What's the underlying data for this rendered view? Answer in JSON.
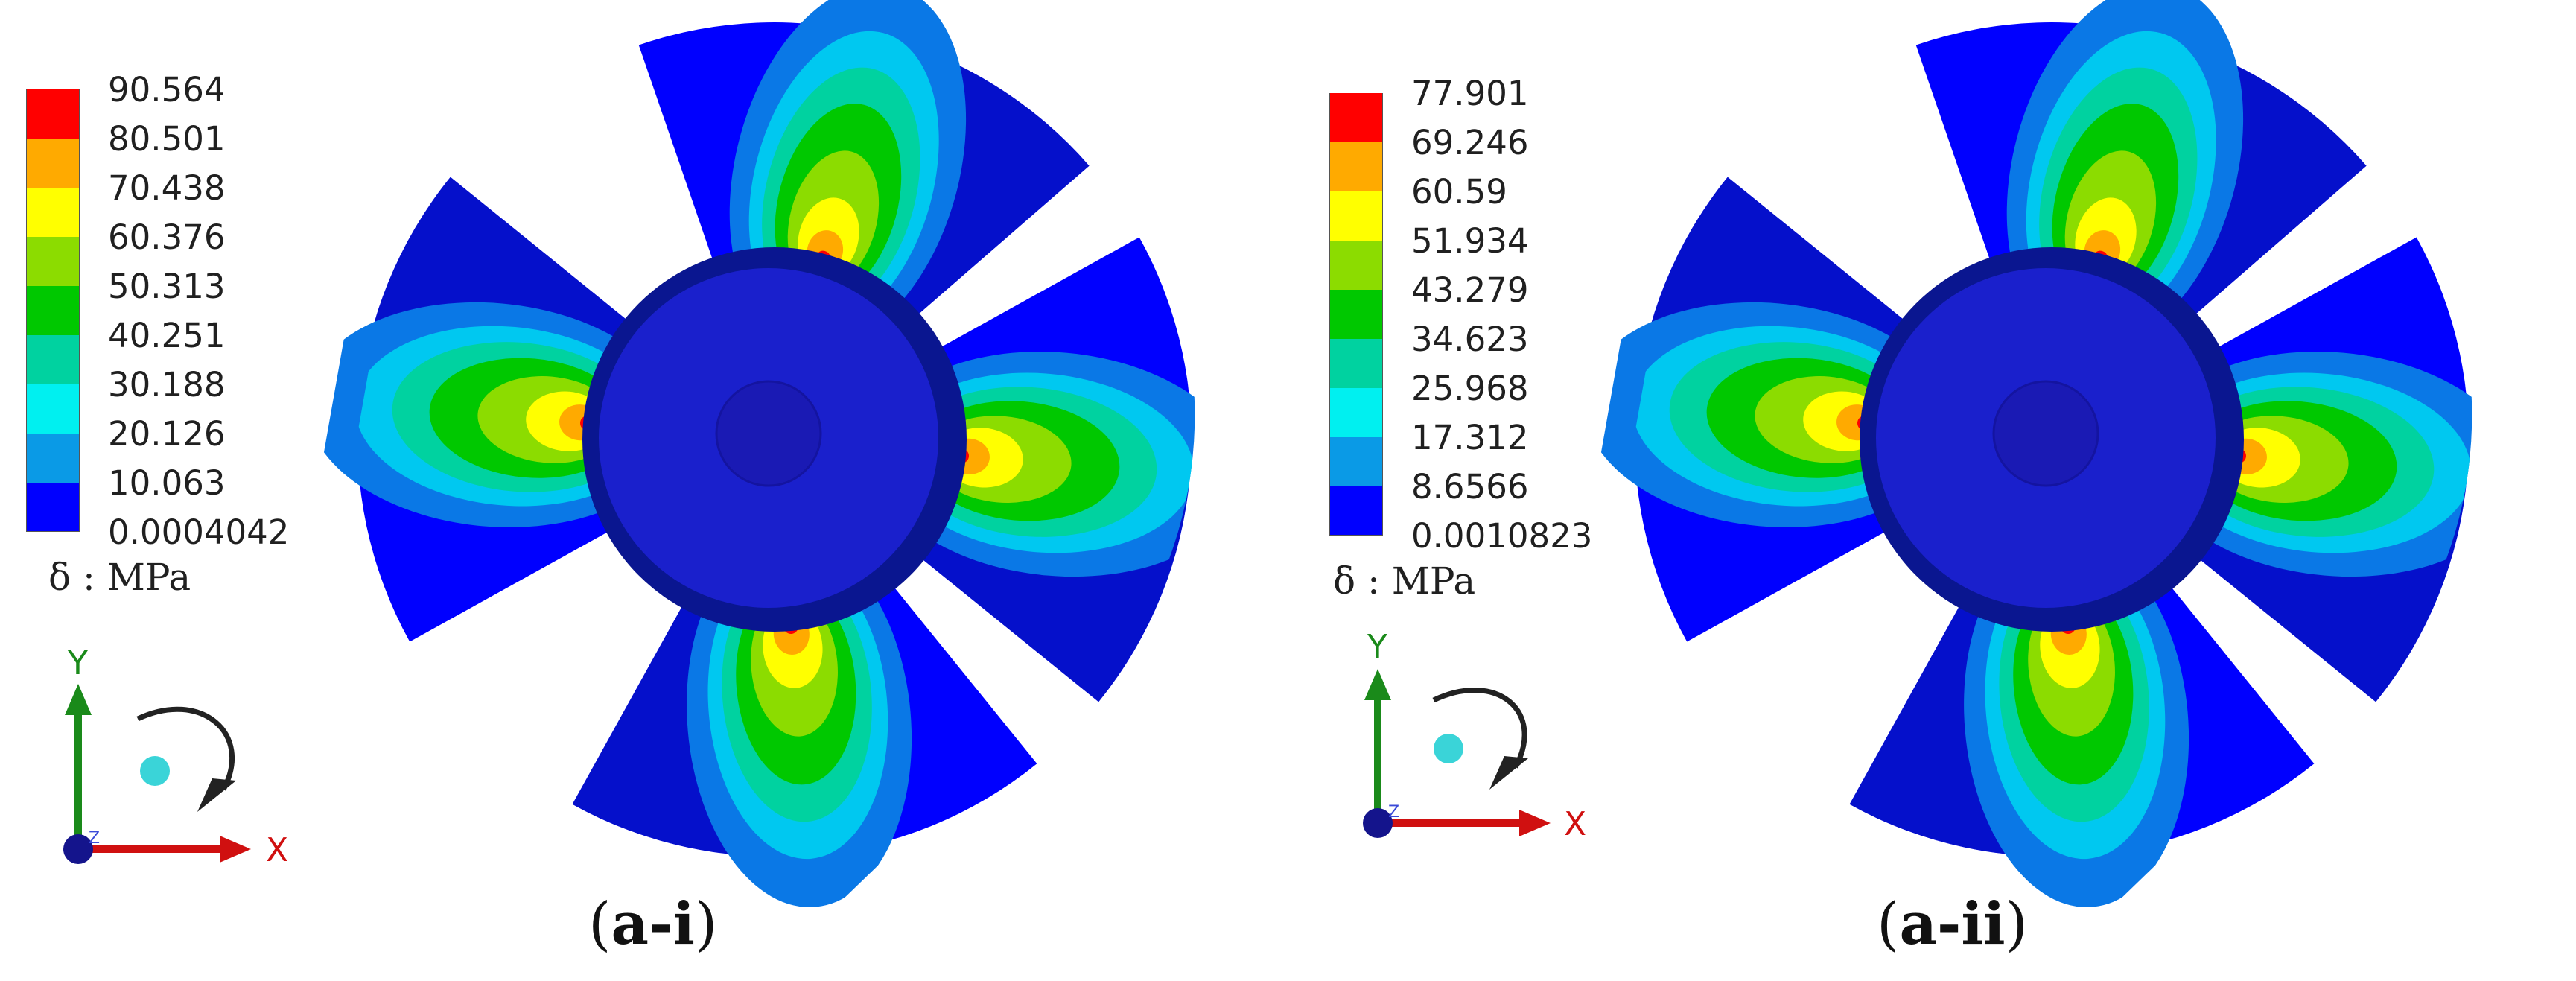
{
  "colors": {
    "band": [
      "#0000ff",
      "#0a78e6",
      "#00c8f0",
      "#00d2a0",
      "#00c800",
      "#8cdc00",
      "#ffff00",
      "#ffaa00",
      "#ff0000"
    ],
    "blade_deep": "#0a1ea0",
    "hub": "#1a1ec8",
    "axis_y": "#1a8a1a",
    "axis_x": "#d01010",
    "axis_z": "#14148c",
    "sphere": "#3ad4d8"
  },
  "panels": [
    {
      "id": "a-i",
      "legend": {
        "ticks": [
          "90.564",
          "80.501",
          "70.438",
          "60.376",
          "50.313",
          "40.251",
          "30.188",
          "20.126",
          "10.063",
          "0.0004042"
        ],
        "unit": "δ : MPa"
      },
      "axes": {
        "y": "Y",
        "x": "X",
        "z": "Z"
      },
      "caption": {
        "open": "(",
        "label": "a-i",
        "close": ")"
      }
    },
    {
      "id": "a-ii",
      "legend": {
        "ticks": [
          "77.901",
          "69.246",
          "60.59",
          "51.934",
          "43.279",
          "34.623",
          "25.968",
          "17.312",
          "8.6566",
          "0.0010823"
        ],
        "unit": "δ : MPa"
      },
      "axes": {
        "y": "Y",
        "x": "X",
        "z": "Z"
      },
      "caption": {
        "open": "(",
        "label": "a-ii",
        "close": ")"
      }
    }
  ]
}
